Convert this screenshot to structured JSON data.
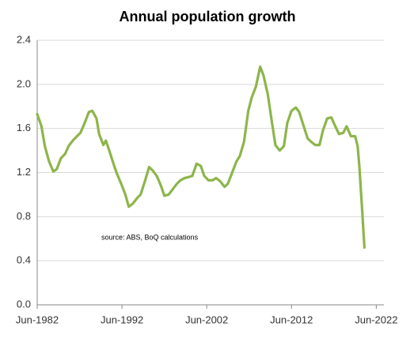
{
  "chart_data": {
    "type": "line",
    "title": "Annual population growth",
    "annotation": "source:  ABS, BoQ calculations",
    "x": [
      1982.5,
      1983.0,
      1983.4,
      1983.9,
      1984.4,
      1984.8,
      1985.3,
      1985.8,
      1986.2,
      1986.7,
      1987.2,
      1987.6,
      1988.1,
      1988.6,
      1989.0,
      1989.5,
      1989.8,
      1990.3,
      1990.6,
      1991.0,
      1991.5,
      1991.9,
      1992.4,
      1992.9,
      1993.3,
      1993.8,
      1994.3,
      1994.7,
      1995.2,
      1995.7,
      1996.1,
      1996.6,
      1997.1,
      1997.5,
      1998.0,
      1998.5,
      1999.0,
      1999.4,
      1999.9,
      2000.4,
      2000.8,
      2001.3,
      2001.8,
      2002.2,
      2002.7,
      2003.2,
      2003.6,
      2004.1,
      2004.6,
      2005.0,
      2005.5,
      2006.0,
      2006.4,
      2006.9,
      2007.4,
      2007.8,
      2008.3,
      2008.8,
      2009.2,
      2009.7,
      2010.2,
      2010.6,
      2011.1,
      2011.6,
      2012.0,
      2012.5,
      2013.0,
      2013.4,
      2013.9,
      2014.4,
      2014.8,
      2015.3,
      2015.8,
      2016.2,
      2016.7,
      2017.2,
      2017.6,
      2018.1,
      2018.6,
      2019.0,
      2019.5,
      2020.0,
      2020.3,
      2020.5,
      2020.8,
      2021.1
    ],
    "series": [
      {
        "name": "Annual population growth",
        "color": "#8db54b",
        "values": [
          1.73,
          1.62,
          1.44,
          1.3,
          1.21,
          1.23,
          1.33,
          1.37,
          1.44,
          1.49,
          1.53,
          1.56,
          1.65,
          1.75,
          1.76,
          1.69,
          1.55,
          1.45,
          1.49,
          1.4,
          1.28,
          1.19,
          1.1,
          1.0,
          0.89,
          0.92,
          0.97,
          1.0,
          1.12,
          1.25,
          1.22,
          1.17,
          1.08,
          0.99,
          1.0,
          1.05,
          1.1,
          1.13,
          1.15,
          1.16,
          1.17,
          1.28,
          1.26,
          1.17,
          1.13,
          1.13,
          1.15,
          1.12,
          1.07,
          1.1,
          1.2,
          1.3,
          1.35,
          1.48,
          1.76,
          1.88,
          1.98,
          2.16,
          2.08,
          1.91,
          1.65,
          1.45,
          1.4,
          1.44,
          1.65,
          1.76,
          1.79,
          1.75,
          1.63,
          1.51,
          1.48,
          1.45,
          1.45,
          1.58,
          1.69,
          1.7,
          1.63,
          1.55,
          1.56,
          1.62,
          1.53,
          1.53,
          1.44,
          1.26,
          0.9,
          0.52
        ]
      }
    ],
    "xlim": [
      1982.5,
      2023.4
    ],
    "xticks": [
      {
        "value": 1982.5,
        "label": "Jun-1982"
      },
      {
        "value": 1992.5,
        "label": "Jun-1992"
      },
      {
        "value": 2002.5,
        "label": "Jun-2002"
      },
      {
        "value": 2012.5,
        "label": "Jun-2012"
      },
      {
        "value": 2022.5,
        "label": "Jun-2022"
      }
    ],
    "ylim": [
      0,
      2.4
    ],
    "yticks": [
      {
        "value": 0,
        "label": "0.0"
      },
      0.4,
      0.8,
      1.2,
      1.6,
      {
        "value": 2,
        "label": "2.0"
      },
      2.4
    ],
    "grid": true
  }
}
